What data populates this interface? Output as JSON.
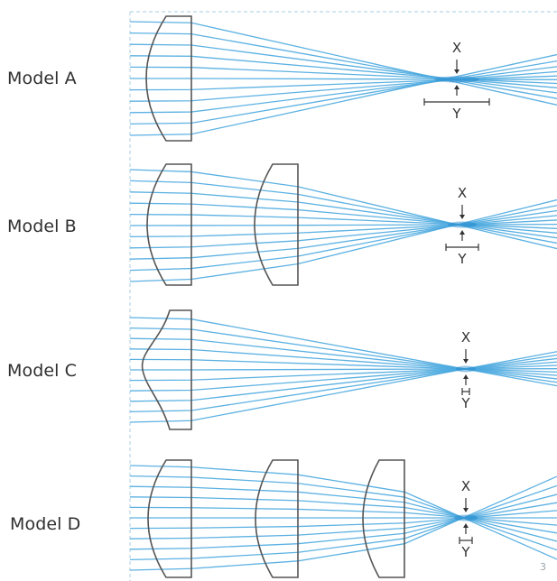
{
  "models": [
    {
      "label": "Model A",
      "lens_count": 1,
      "focus_marker": "X",
      "spread_marker": "Y"
    },
    {
      "label": "Model B",
      "lens_count": 2,
      "focus_marker": "X",
      "spread_marker": "Y"
    },
    {
      "label": "Model C",
      "lens_count": 1,
      "lens_type": "aspheric",
      "focus_marker": "X",
      "spread_marker": "Y"
    },
    {
      "label": "Model D",
      "lens_count": 3,
      "focus_marker": "X",
      "spread_marker": "Y"
    }
  ],
  "page_number": "3",
  "colors": {
    "ray": "#4aa8df",
    "ray_focus": "#1f86c9",
    "lens_outline": "#555555",
    "marker": "#333333",
    "label": "#2f2f2f",
    "border": "#b9d7ea"
  }
}
